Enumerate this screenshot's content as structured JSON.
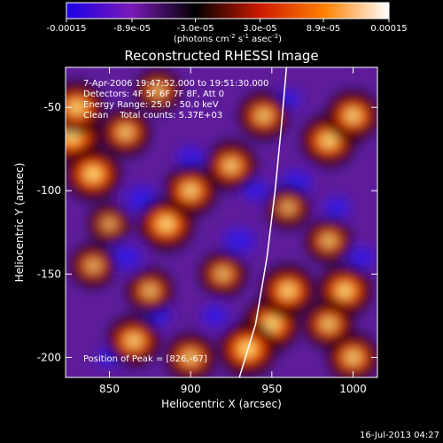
{
  "chart_data": {
    "type": "heatmap",
    "title": "Reconstructed RHESSI Image",
    "xlabel": "Heliocentric X (arcsec)",
    "ylabel": "Heliocentric Y (arcsec)",
    "xlim": [
      823,
      1015
    ],
    "ylim": [
      -212,
      -26
    ],
    "x_ticks": [
      850,
      900,
      950,
      1000
    ],
    "y_ticks": [
      -50,
      -100,
      -150,
      -200
    ],
    "colorbar": {
      "min": -0.00015,
      "max": 0.00015,
      "tick_labels": [
        "-0.00015",
        "-8.9e-05",
        "-3.0e-05",
        "3.0e-05",
        "8.9e-05",
        "0.00015"
      ],
      "label": "(photons cm-2 s-1 asec-2)",
      "colors": [
        "#1a00e6",
        "#7a1ab8",
        "#000000",
        "#cc1a00",
        "#ff8000",
        "#ffffff"
      ]
    },
    "annotations": [
      "7-Apr-2006 19:47:52.000 to 19:51:30.000",
      "Detectors: 4F 5F 6F 7F 8F, Att 0",
      "Energy Range: 25.0 - 50.0 keV",
      "Clean    Total counts: 5.37E+03",
      "Position of Peak = [826,-67]"
    ],
    "limb_curve": [
      [
        930,
        -212
      ],
      [
        940,
        -180
      ],
      [
        947,
        -140
      ],
      [
        952,
        -100
      ],
      [
        956,
        -60
      ],
      [
        959,
        -26
      ]
    ],
    "hot_spots": [
      {
        "x": 827,
        "y": -67,
        "v": 1.0
      },
      {
        "x": 840,
        "y": -90,
        "v": 0.9
      },
      {
        "x": 830,
        "y": -50,
        "v": 0.85
      },
      {
        "x": 885,
        "y": -120,
        "v": 0.9
      },
      {
        "x": 900,
        "y": -100,
        "v": 0.8
      },
      {
        "x": 925,
        "y": -85,
        "v": 0.75
      },
      {
        "x": 860,
        "y": -65,
        "v": 0.7
      },
      {
        "x": 945,
        "y": -55,
        "v": 0.7
      },
      {
        "x": 985,
        "y": -70,
        "v": 0.85
      },
      {
        "x": 1000,
        "y": -55,
        "v": 0.8
      },
      {
        "x": 995,
        "y": -160,
        "v": 0.85
      },
      {
        "x": 985,
        "y": -130,
        "v": 0.6
      },
      {
        "x": 950,
        "y": -180,
        "v": 0.9
      },
      {
        "x": 960,
        "y": -160,
        "v": 0.85
      },
      {
        "x": 935,
        "y": -195,
        "v": 0.95
      },
      {
        "x": 865,
        "y": -190,
        "v": 0.8
      },
      {
        "x": 875,
        "y": -160,
        "v": 0.6
      },
      {
        "x": 900,
        "y": -200,
        "v": 0.7
      },
      {
        "x": 1000,
        "y": -200,
        "v": 0.75
      },
      {
        "x": 985,
        "y": -180,
        "v": 0.7
      },
      {
        "x": 920,
        "y": -150,
        "v": 0.6
      },
      {
        "x": 840,
        "y": -145,
        "v": 0.55
      },
      {
        "x": 880,
        "y": -40,
        "v": 0.55
      },
      {
        "x": 960,
        "y": -110,
        "v": 0.5
      },
      {
        "x": 850,
        "y": -120,
        "v": 0.45
      }
    ],
    "cold_spots": [
      {
        "x": 860,
        "y": -140,
        "v": 0.8
      },
      {
        "x": 870,
        "y": -105,
        "v": 0.9
      },
      {
        "x": 900,
        "y": -80,
        "v": 0.6
      },
      {
        "x": 930,
        "y": -130,
        "v": 0.85
      },
      {
        "x": 965,
        "y": -95,
        "v": 0.8
      },
      {
        "x": 990,
        "y": -110,
        "v": 0.6
      },
      {
        "x": 915,
        "y": -175,
        "v": 0.6
      },
      {
        "x": 880,
        "y": -175,
        "v": 0.55
      },
      {
        "x": 960,
        "y": -45,
        "v": 0.5
      },
      {
        "x": 1005,
        "y": -140,
        "v": 0.6
      },
      {
        "x": 850,
        "y": -200,
        "v": 0.5
      },
      {
        "x": 940,
        "y": -100,
        "v": 0.6
      }
    ]
  },
  "footer": {
    "timestamp": "16-Jul-2013 04:27"
  }
}
